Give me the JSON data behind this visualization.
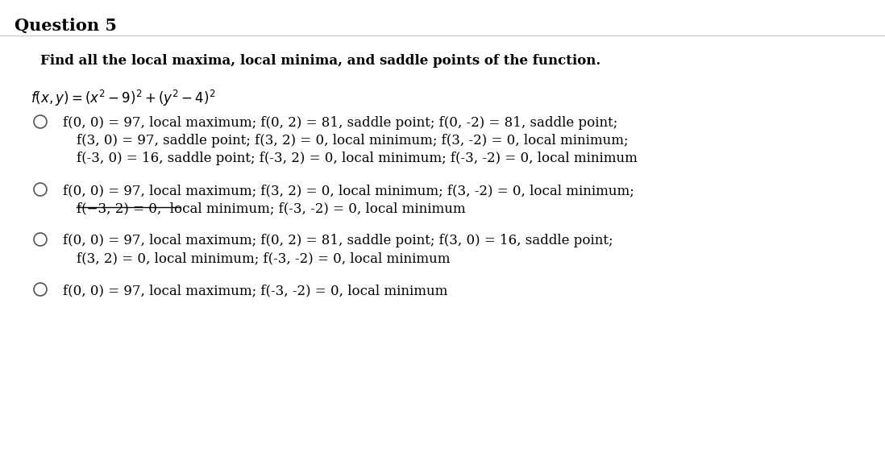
{
  "title": "Question 5",
  "question_text": "Find all the local maxima, local minima, and saddle points of the function.",
  "background_color": "#ffffff",
  "options": [
    {
      "lines": [
        "f(0, 0) = 97, local maximum; f(0, 2) = 81, saddle point; f(0, -2) = 81, saddle point;",
        "f(3, 0) = 97, saddle point; f(3, 2) = 0, local minimum; f(3, -2) = 0, local minimum;",
        "f(-3, 0) = 16, saddle point; f(-3, 2) = 0, local minimum; f(-3, -2) = 0, local minimum"
      ],
      "strikethrough_line": null
    },
    {
      "lines": [
        "f(0, 0) = 97, local maximum; f(3, 2) = 0, local minimum; f(3, -2) = 0, local minimum;",
        "f(−3, 2) = 0,  local minimum; f(-3, -2) = 0, local minimum"
      ],
      "strikethrough_line": 1
    },
    {
      "lines": [
        "f(0, 0) = 97, local maximum; f(0, 2) = 81, saddle point; f(3, 0) = 16, saddle point;",
        "f(3, 2) = 0, local minimum; f(-3, -2) = 0, local minimum"
      ],
      "strikethrough_line": null
    },
    {
      "lines": [
        "f(0, 0) = 97, local maximum; f(-3, -2) = 0, local minimum"
      ],
      "strikethrough_line": null
    }
  ],
  "title_fontsize": 15,
  "bold_fontsize": 12,
  "body_fontsize": 12,
  "func_fontsize": 12
}
